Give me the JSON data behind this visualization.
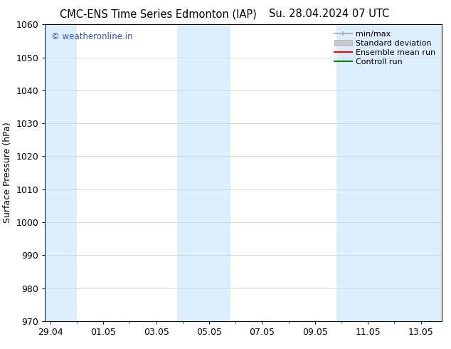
{
  "title_left": "CMC-ENS Time Series Edmonton (IAP)",
  "title_right": "Su. 28.04.2024 07 UTC",
  "ylabel": "Surface Pressure (hPa)",
  "ylim": [
    970,
    1060
  ],
  "yticks": [
    970,
    980,
    990,
    1000,
    1010,
    1020,
    1030,
    1040,
    1050,
    1060
  ],
  "xtick_labels": [
    "29.04",
    "01.05",
    "03.05",
    "05.05",
    "07.05",
    "09.05",
    "11.05",
    "13.05"
  ],
  "xtick_positions": [
    0,
    2,
    4,
    6,
    8,
    10,
    12,
    14
  ],
  "xlim": [
    -0.2,
    14.8
  ],
  "shade_color": "#ddeeff",
  "background_color": "#ffffff",
  "watermark_text": "© weatheronline.in",
  "watermark_color": "#3355bb",
  "legend_entries": [
    "min/max",
    "Standard deviation",
    "Ensemble mean run",
    "Controll run"
  ],
  "legend_colors": [
    "#aaaaaa",
    "#cccccc",
    "#ff0000",
    "#008800"
  ],
  "grid_color": "#cccccc",
  "font_size": 9,
  "title_font_size": 10.5
}
